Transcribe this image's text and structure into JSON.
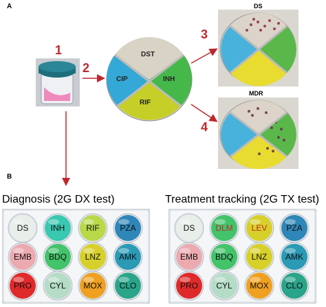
{
  "panel_a": "A",
  "panel_b": "B",
  "steps": [
    "1",
    "2",
    "3",
    "4"
  ],
  "center_plate": {
    "quadrants": [
      "DST",
      "INH",
      "RIF",
      "CIP"
    ]
  },
  "ds_plate": {
    "title": "DS"
  },
  "mdr_plate": {
    "title": "MDR"
  },
  "diagnosis_plate": {
    "title": "Diagnosis (2G DX test)",
    "rows": [
      [
        {
          "label": "DS",
          "color": "#e8eee9"
        },
        {
          "label": "INH",
          "color": "#39c8b0"
        },
        {
          "label": "RIF",
          "color": "#b9d84a"
        },
        {
          "label": "PZA",
          "color": "#2f86b8"
        }
      ],
      [
        {
          "label": "EMB",
          "color": "#ecaab0"
        },
        {
          "label": "BDQ",
          "color": "#43c36a"
        },
        {
          "label": "LNZ",
          "color": "#d8d02a"
        },
        {
          "label": "AMK",
          "color": "#2a9ab5"
        }
      ],
      [
        {
          "label": "PRO",
          "color": "#e02a2a"
        },
        {
          "label": "CYL",
          "color": "#b4dcc6"
        },
        {
          "label": "MOX",
          "color": "#f0a020"
        },
        {
          "label": "CLO",
          "color": "#2aa58a"
        }
      ]
    ]
  },
  "treatment_plate": {
    "title": "Treatment tracking (2G TX test)",
    "rows": [
      [
        {
          "label": "DS",
          "color": "#e8eee9"
        },
        {
          "label": "DLM",
          "color": "#43c36a",
          "red": true
        },
        {
          "label": "LEV",
          "color": "#d8d02a",
          "red": true
        },
        {
          "label": "PZA",
          "color": "#2f86b8"
        }
      ],
      [
        {
          "label": "EMB",
          "color": "#ecaab0"
        },
        {
          "label": "BDQ",
          "color": "#43c36a"
        },
        {
          "label": "LNZ",
          "color": "#d8d02a"
        },
        {
          "label": "AMK",
          "color": "#2a9ab5"
        }
      ],
      [
        {
          "label": "PRO",
          "color": "#e02a2a"
        },
        {
          "label": "CYL",
          "color": "#b4dcc6"
        },
        {
          "label": "MOX",
          "color": "#f0a020"
        },
        {
          "label": "CLO",
          "color": "#2aa58a"
        }
      ]
    ]
  },
  "colors": {
    "arrow": "#c0272d"
  }
}
